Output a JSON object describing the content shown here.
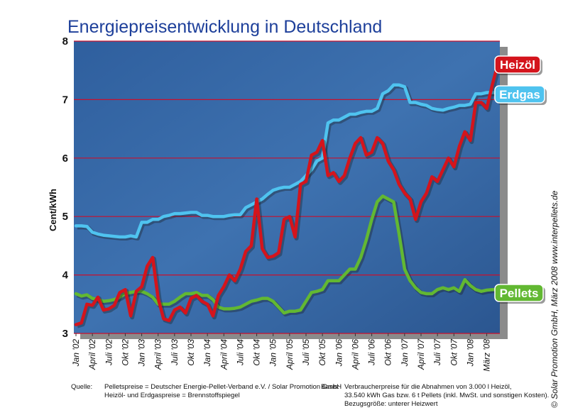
{
  "chart_data": {
    "type": "line",
    "title": "Energiepreisentwicklung in Deutschland",
    "ylabel": "Cent/kWh",
    "ylim": [
      3,
      8
    ],
    "yticks": [
      "3",
      "4",
      "5",
      "6",
      "7",
      "8"
    ],
    "grid": true,
    "legend": "right, at line ends",
    "x_tick_labels": [
      "Jan '02",
      "April '02",
      "Juli '02",
      "Okt '02",
      "Jan '03",
      "April '03",
      "Juli '03",
      "Okt '03",
      "Jan '04",
      "April '04",
      "Juli '04",
      "Okt '04",
      "Jan '05",
      "April '05",
      "Juli '05",
      "Okt '05",
      "Jan '06",
      "April '06",
      "Juli '06",
      "Okt '06",
      "Jan '07",
      "April '07",
      "Juli '07",
      "Okt '07",
      "Jan '08",
      "März '08"
    ],
    "x_start": "2002-01",
    "x_end": "2008-03",
    "x_step": "month",
    "series": [
      {
        "name": "Heizöl",
        "color": "#d4141c",
        "values": [
          3.15,
          3.18,
          3.5,
          3.48,
          3.62,
          3.4,
          3.42,
          3.48,
          3.7,
          3.75,
          3.3,
          3.72,
          3.8,
          4.15,
          4.3,
          3.6,
          3.25,
          3.22,
          3.4,
          3.45,
          3.35,
          3.6,
          3.65,
          3.55,
          3.5,
          3.3,
          3.65,
          3.8,
          4.0,
          3.9,
          4.1,
          4.4,
          4.5,
          5.3,
          4.45,
          4.3,
          4.32,
          4.38,
          4.95,
          5.0,
          4.65,
          5.55,
          5.6,
          6.05,
          6.1,
          6.3,
          5.7,
          5.75,
          5.6,
          5.7,
          6.0,
          6.25,
          6.35,
          6.05,
          6.1,
          6.35,
          6.25,
          5.95,
          5.8,
          5.55,
          5.4,
          5.3,
          4.95,
          5.25,
          5.4,
          5.68,
          5.6,
          5.8,
          6.0,
          5.85,
          6.2,
          6.45,
          6.3,
          6.95,
          6.95,
          6.85,
          7.25,
          7.6
        ]
      },
      {
        "name": "Erdgas",
        "color": "#4fc3ef",
        "values": [
          4.84,
          4.84,
          4.83,
          4.73,
          4.7,
          4.68,
          4.67,
          4.66,
          4.65,
          4.65,
          4.67,
          4.65,
          4.9,
          4.9,
          4.95,
          4.95,
          5.0,
          5.02,
          5.05,
          5.05,
          5.06,
          5.07,
          5.07,
          5.02,
          5.02,
          5.0,
          5.0,
          5.0,
          5.02,
          5.03,
          5.03,
          5.15,
          5.2,
          5.25,
          5.3,
          5.38,
          5.45,
          5.48,
          5.5,
          5.5,
          5.55,
          5.6,
          5.7,
          5.8,
          5.95,
          6.0,
          6.6,
          6.65,
          6.65,
          6.7,
          6.75,
          6.75,
          6.78,
          6.8,
          6.8,
          6.85,
          7.1,
          7.15,
          7.25,
          7.25,
          7.22,
          6.95,
          6.95,
          6.92,
          6.9,
          6.85,
          6.83,
          6.82,
          6.85,
          6.87,
          6.9,
          6.9,
          6.92,
          7.1,
          7.1,
          7.12,
          7.12,
          7.12
        ]
      },
      {
        "name": "Pellets",
        "color": "#62b832",
        "values": [
          3.68,
          3.64,
          3.66,
          3.6,
          3.58,
          3.55,
          3.56,
          3.58,
          3.62,
          3.68,
          3.7,
          3.72,
          3.72,
          3.68,
          3.62,
          3.5,
          3.5,
          3.5,
          3.55,
          3.62,
          3.68,
          3.68,
          3.7,
          3.65,
          3.65,
          3.58,
          3.45,
          3.42,
          3.42,
          3.43,
          3.45,
          3.5,
          3.55,
          3.57,
          3.6,
          3.6,
          3.55,
          3.45,
          3.35,
          3.38,
          3.38,
          3.4,
          3.55,
          3.7,
          3.72,
          3.75,
          3.9,
          3.9,
          3.9,
          4.0,
          4.1,
          4.1,
          4.3,
          4.6,
          4.95,
          5.25,
          5.35,
          5.3,
          5.25,
          4.7,
          4.1,
          3.9,
          3.78,
          3.7,
          3.68,
          3.68,
          3.75,
          3.78,
          3.75,
          3.78,
          3.72,
          3.92,
          3.82,
          3.75,
          3.72,
          3.74,
          3.75,
          3.75
        ]
      }
    ]
  },
  "credit": "© Solar Promotion GmbH, März 2008        www.interpellets.de",
  "footer": {
    "quellen_label": "Quelle:",
    "quellen_line1": "Pelletspreise = Deutscher Energie-Pellet-Verband e.V. / Solar Promotion GmbH",
    "quellen_line2": "Heizöl- und Erdgaspreise = Brennstoffspiegel",
    "basis_label": "Basis:",
    "basis_line1": "Verbraucherpreise für die Abnahmen von 3.000 l Heizöl,",
    "basis_line2": "33.540 kWh Gas bzw. 6 t Pellets (inkl. MwSt. und sonstigen Kosten).",
    "basis_line3": "Bezugsgröße: unterer Heizwert"
  }
}
